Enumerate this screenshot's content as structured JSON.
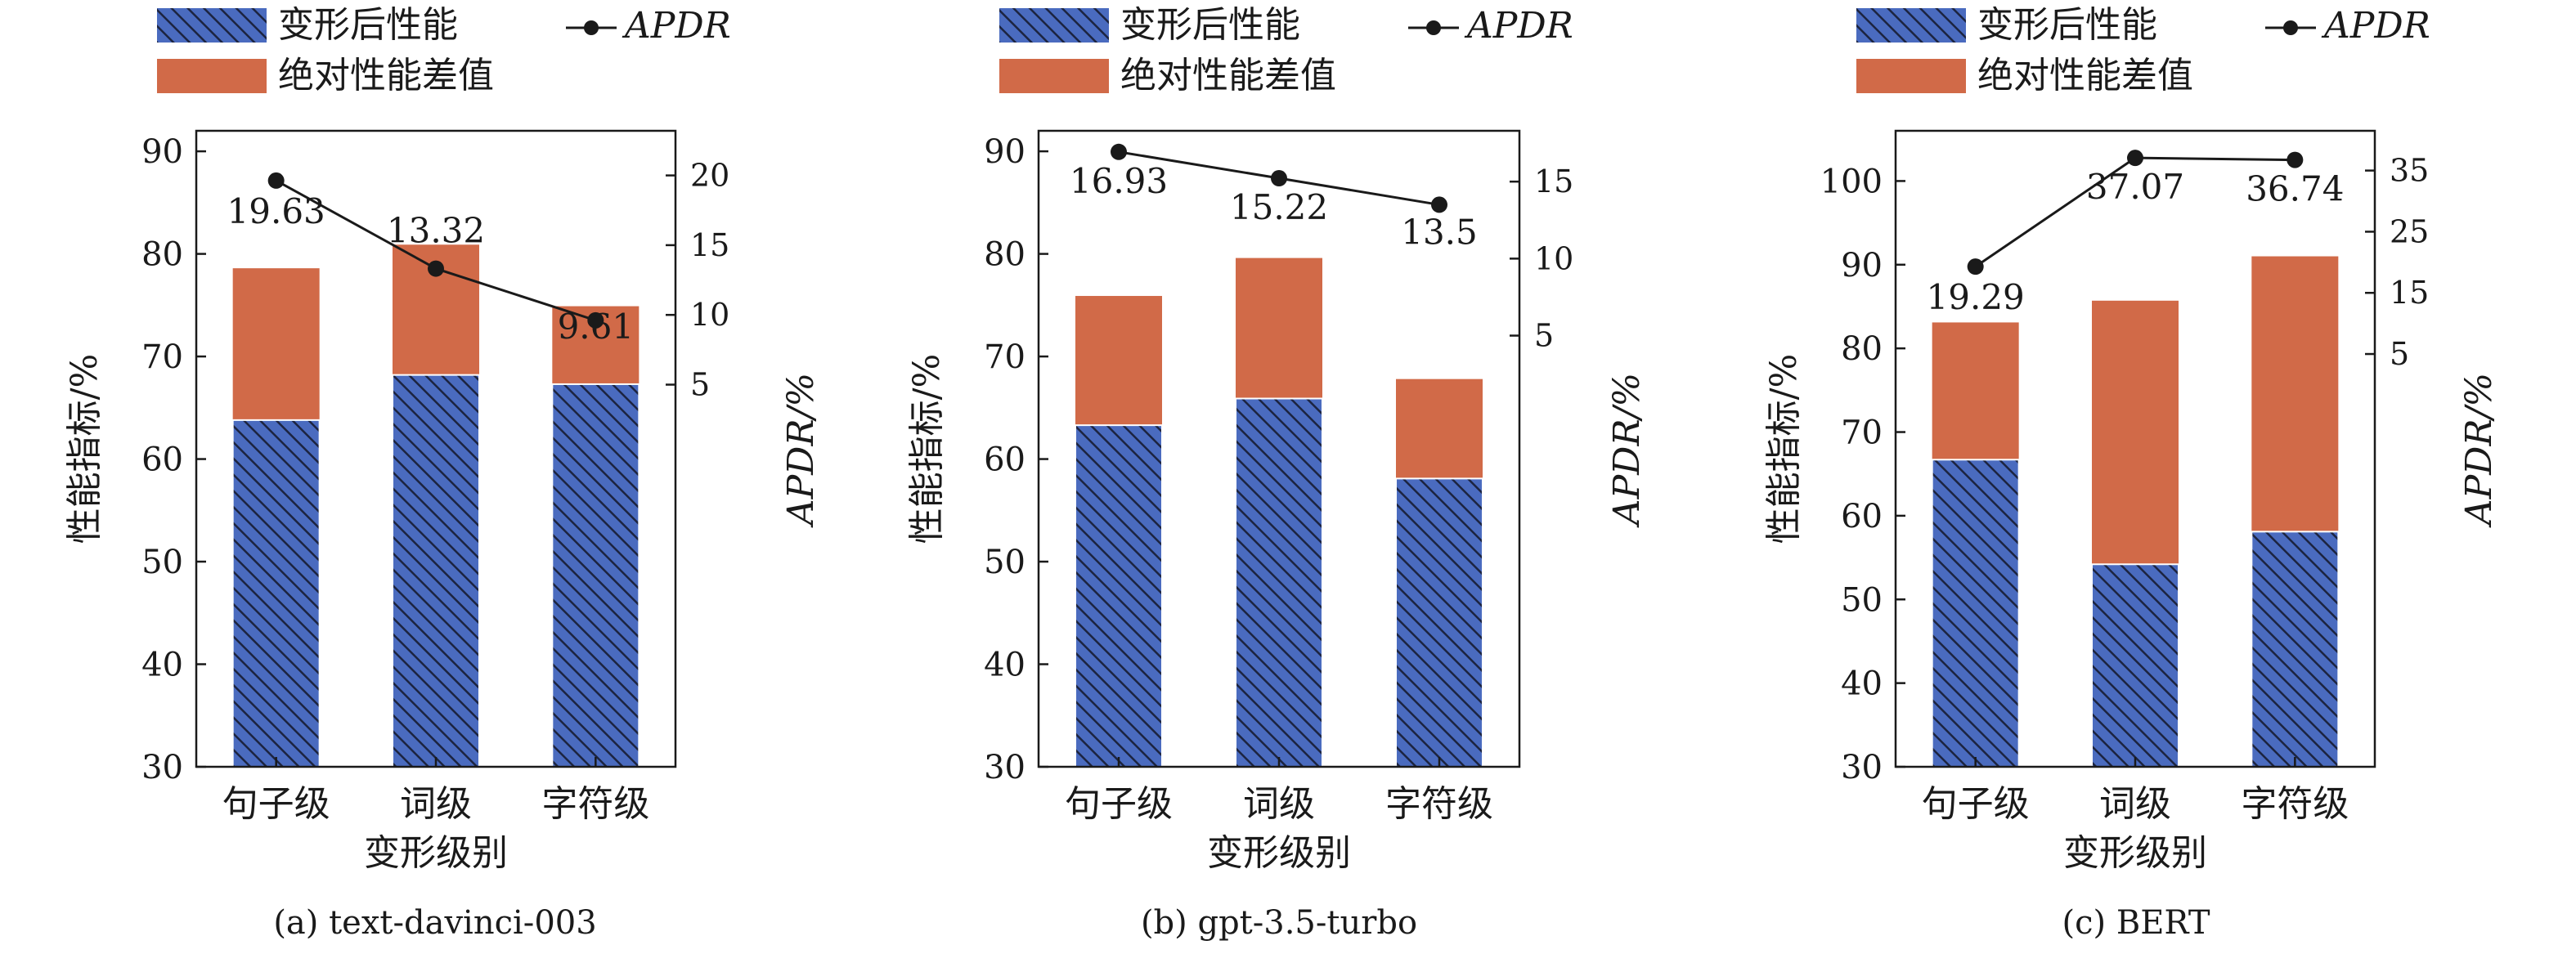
{
  "legend": {
    "stack_low": "变形后性能",
    "stack_high": "绝对性能差值",
    "line": "APDR"
  },
  "colors": {
    "blue": "#4a6bbf",
    "orange": "#d16a48",
    "hatch": "#1c2440",
    "line": "#1a1a1a"
  },
  "chart_data": [
    {
      "type": "bar",
      "caption": "(a)  text-davinci-003",
      "categories": [
        "句子级",
        "词级",
        "字符级"
      ],
      "xlabel": "变形级别",
      "ylabel": "性能指标/%",
      "y2label": "APDR/%",
      "ylim": [
        30,
        92
      ],
      "yticks": [
        30,
        40,
        50,
        60,
        70,
        80,
        90
      ],
      "y2lim": [
        -22.4,
        23.2
      ],
      "y2ticks": [
        5,
        10,
        15,
        20
      ],
      "series": [
        {
          "name": "变形后性能",
          "values": [
            63.8,
            68.2,
            67.3
          ]
        },
        {
          "name": "绝对性能差值",
          "values": [
            14.8,
            12.7,
            7.6
          ]
        },
        {
          "name": "APDR",
          "values": [
            19.63,
            13.32,
            9.61
          ],
          "labels": [
            "19.63",
            "13.32",
            "9.61"
          ]
        }
      ],
      "stack_totals": [
        78.6,
        80.9,
        74.9
      ]
    },
    {
      "type": "bar",
      "caption": "(b)  gpt-3.5-turbo",
      "categories": [
        "句子级",
        "词级",
        "字符级"
      ],
      "xlabel": "变形级别",
      "ylabel": "性能指标/%",
      "y2label": "APDR/%",
      "ylim": [
        30,
        92
      ],
      "yticks": [
        30,
        40,
        50,
        60,
        70,
        80,
        90
      ],
      "y2lim": [
        -23,
        18.3
      ],
      "y2ticks": [
        5,
        10,
        15
      ],
      "series": [
        {
          "name": "变形后性能",
          "values": [
            63.3,
            65.9,
            58.1
          ]
        },
        {
          "name": "绝对性能差值",
          "values": [
            12.6,
            13.7,
            9.7
          ]
        },
        {
          "name": "APDR",
          "values": [
            16.93,
            15.22,
            13.5
          ],
          "labels": [
            "16.93",
            "15.22",
            "13.5"
          ]
        }
      ],
      "stack_totals": [
        75.9,
        79.6,
        67.8
      ]
    },
    {
      "type": "bar",
      "caption": "(c)  BERT",
      "categories": [
        "句子级",
        "词级",
        "字符级"
      ],
      "xlabel": "变形级别",
      "ylabel": "性能指标/%",
      "y2label": "APDR/%",
      "ylim": [
        30,
        106
      ],
      "yticks": [
        30,
        40,
        50,
        60,
        70,
        80,
        90,
        100
      ],
      "y2lim": [
        -62.5,
        41.5
      ],
      "y2ticks": [
        5,
        15,
        25,
        35
      ],
      "series": [
        {
          "name": "变形后性能",
          "values": [
            66.7,
            54.2,
            58.1
          ]
        },
        {
          "name": "绝对性能差值",
          "values": [
            16.4,
            31.5,
            32.9
          ]
        },
        {
          "name": "APDR",
          "values": [
            19.29,
            37.07,
            36.74
          ],
          "labels": [
            "19.29",
            "37.07",
            "36.74"
          ]
        }
      ],
      "stack_totals": [
        83.1,
        85.7,
        91.0
      ]
    }
  ]
}
